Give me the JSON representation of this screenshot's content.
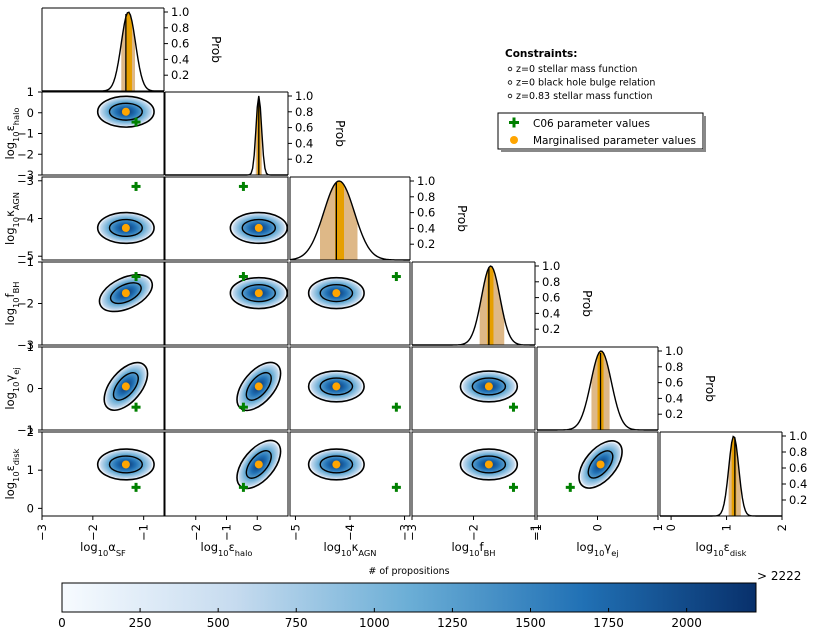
{
  "chart_data": {
    "type": "corner",
    "description_title": "Corner plot of posterior distributions",
    "parameters": [
      {
        "id": "aSF",
        "main": "log",
        "sub": "10",
        "sym": "α",
        "symsub": "SF",
        "range": [
          -3,
          -0.6
        ],
        "ticks": [
          -3,
          -2,
          -1
        ],
        "fit": -1.35,
        "c06": -1.15
      },
      {
        "id": "ehalo",
        "main": "log",
        "sub": "10",
        "sym": "ε",
        "symsub": "halo",
        "range": [
          -3.0,
          1.0
        ],
        "ticks": [
          -3,
          -2,
          -1,
          0,
          1
        ],
        "xticks": [
          -2,
          -1,
          0
        ],
        "fit": 0.05,
        "c06": -0.45
      },
      {
        "id": "kAGN",
        "main": "log",
        "sub": "10",
        "sym": "κ",
        "symsub": "AGN",
        "range": [
          -5.1,
          -2.9
        ],
        "ticks": [
          -5,
          -4,
          -3
        ],
        "fit": -4.25,
        "c06": -3.15
      },
      {
        "id": "fBH",
        "main": "log",
        "sub": "10",
        "sym": "f",
        "symsub": "BH",
        "range": [
          -3.0,
          -1.0
        ],
        "ticks": [
          -3,
          -2,
          -1
        ],
        "fit": -1.75,
        "c06": -1.35
      },
      {
        "id": "gej",
        "main": "log",
        "sub": "10",
        "sym": "γ",
        "symsub": "ej",
        "range": [
          -1.0,
          1.0
        ],
        "ticks": [
          -1,
          0,
          1
        ],
        "fit": 0.05,
        "c06": -0.45
      },
      {
        "id": "edisk",
        "main": "log",
        "sub": "10",
        "sym": "ε",
        "symsub": "disk",
        "range": [
          -0.2,
          2.0
        ],
        "ticks": [
          0,
          1,
          2
        ],
        "fit": 1.15,
        "c06": 0.55
      }
    ],
    "marginal_ylabel": "Prob",
    "marginal_ticks": [
      "0.2",
      "0.4",
      "0.6",
      "0.8",
      "1.0"
    ],
    "marginal_shapes": [
      {
        "center": -1.3,
        "sigma": 0.14,
        "shaded": [
          -1.45,
          -1.15
        ],
        "inner": [
          -1.38,
          -1.22
        ]
      },
      {
        "center": 0.05,
        "sigma": 0.09,
        "shaded": [
          -0.05,
          0.15
        ],
        "inner": [
          0.0,
          0.1
        ]
      },
      {
        "center": -4.2,
        "sigma": 0.28,
        "shaded": [
          -4.55,
          -3.85
        ],
        "inner": [
          -4.3,
          -4.1
        ]
      },
      {
        "center": -1.72,
        "sigma": 0.15,
        "shaded": [
          -1.9,
          -1.5
        ],
        "inner": [
          -1.78,
          -1.66
        ]
      },
      {
        "center": 0.06,
        "sigma": 0.17,
        "shaded": [
          -0.12,
          0.22
        ],
        "inner": [
          -0.02,
          0.12
        ]
      },
      {
        "center": 1.13,
        "sigma": 0.09,
        "shaded": [
          1.02,
          1.28
        ],
        "inner": [
          1.08,
          1.18
        ]
      }
    ],
    "legend": {
      "constraints_title": "Constraints:",
      "constraints": [
        "z=0 stellar mass function",
        "z=0 black hole bulge relation",
        "z=0.83 stellar mass function"
      ],
      "c06_label": "C06 parameter values",
      "marginal_label": "Marginalised parameter values"
    },
    "colorbar": {
      "title": "# of propositions",
      "max_label": "> 2222",
      "ticks": [
        "0",
        "250",
        "500",
        "750",
        "1000",
        "1250",
        "1500",
        "1750",
        "2000"
      ],
      "tick_values": [
        0,
        250,
        500,
        750,
        1000,
        1250,
        1500,
        1750,
        2000
      ],
      "vmax": 2222,
      "cmap": [
        "#f7fbff",
        "#c6dbef",
        "#6baed6",
        "#2171b5",
        "#08306b"
      ]
    },
    "colors": {
      "fill": "#deb887",
      "accent": "#e69f00",
      "marker": "#ffa500",
      "cross": "#008000",
      "contour": "#000000"
    }
  }
}
